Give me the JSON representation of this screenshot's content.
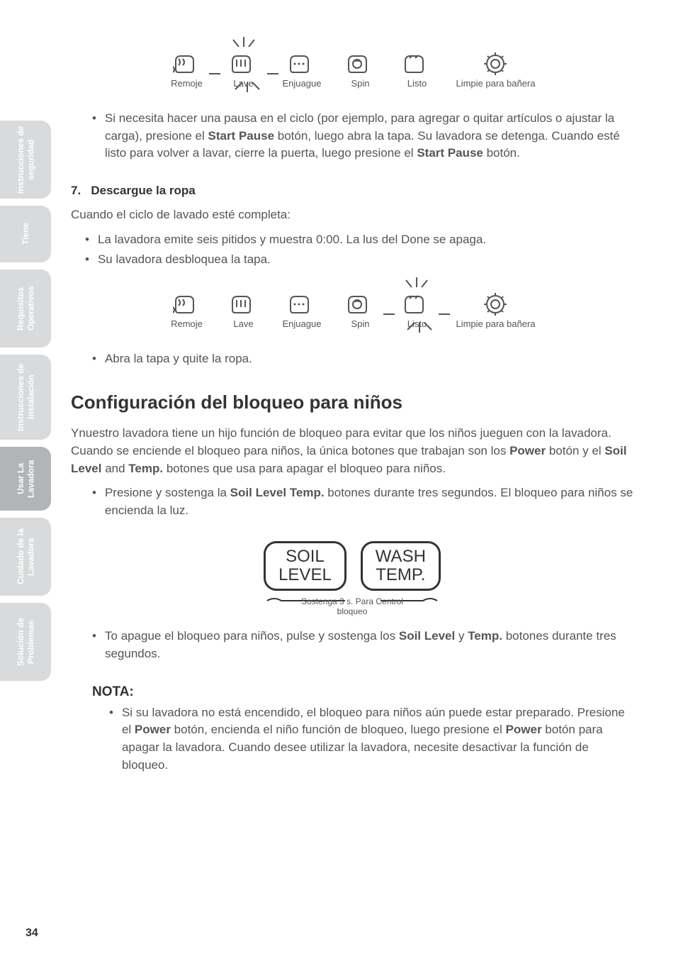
{
  "tabs": [
    {
      "label": "Instrucciones\nde seguridad",
      "active": false
    },
    {
      "label": "Tiene",
      "active": false
    },
    {
      "label": "Requisitos\nOperativos",
      "active": false
    },
    {
      "label": "Instrucciones\nde Instalación",
      "active": false
    },
    {
      "label": "Usar La\nLavadora",
      "active": true
    },
    {
      "label": "Cuidado de la\nLavadora",
      "active": false
    },
    {
      "label": "Solución de\nProblemas",
      "active": false
    }
  ],
  "iconRow1": {
    "labels": [
      "Remoje",
      "Lave",
      "Enjuague",
      "Spin",
      "Listo",
      "Limpie para bañera"
    ],
    "flashIndex": 1
  },
  "pauseBullet": "Si necesita hacer una pausa en el ciclo (por ejemplo, para agregar o quitar artículos o ajustar la carga), presione el <b>Start Pause</b> botón, luego abra la tapa. Su lavadora se detenga. Cuando esté listo para volver a lavar, cierre la puerta, luego presione el <b>Start Pause</b> botón.",
  "step7": {
    "num": "7.",
    "title": "Descargue la ropa"
  },
  "step7Line": "Cuando el ciclo de lavado esté completa:",
  "step7Bullets": [
    "La lavadora emite seis pitidos y muestra 0:00. La lus del Done se apaga.",
    "Su lavadora desbloquea la tapa."
  ],
  "iconRow2": {
    "labels": [
      "Remoje",
      "Lave",
      "Enjuague",
      "Spin",
      "Listo",
      "Limpie para bañera"
    ],
    "flashIndex": 4
  },
  "step7Bullet3": "Abra la tapa y quite la ropa.",
  "childLock": {
    "heading": "Configuración del bloqueo para niños",
    "para": "Ynuestro lavadora tiene un hijo función de bloqueo para evitar que los niños jueguen con la lavadora. Cuando se enciende el bloqueo para niños, la única botones que trabajan son los <b>Power</b> botón y el <b>Soil Level</b> and <b>Temp.</b> botones que usa para apagar el bloqueo para niños.",
    "bullet1": "Presione y sostenga la <b>Soil Level  Temp.</b> botones durante tres segundos. El bloqueo para niños se encienda la luz.",
    "btn1": "SOIL\nLEVEL",
    "btn2": "WASH\nTEMP.",
    "holdLabel": "Sostenga 3 s. Para Centrol\nbloqueo",
    "bullet2": "To apague el bloqueo para niños, pulse y sostenga los <b>Soil Level</b> y <b>Temp.</b> botones durante tres segundos.",
    "notaTitle": "NOTA:",
    "notaBullet": "Si su lavadora no está encendido, el bloqueo para niños aún puede estar preparado. Presione el <b>Power</b> botón, encienda el niño función de bloqueo, luego presione el <b>Power</b> botón para apagar la lavadora. Cuando desee utilizar la lavadora, necesite desactivar la función de bloqueo."
  },
  "pageNumber": "34"
}
